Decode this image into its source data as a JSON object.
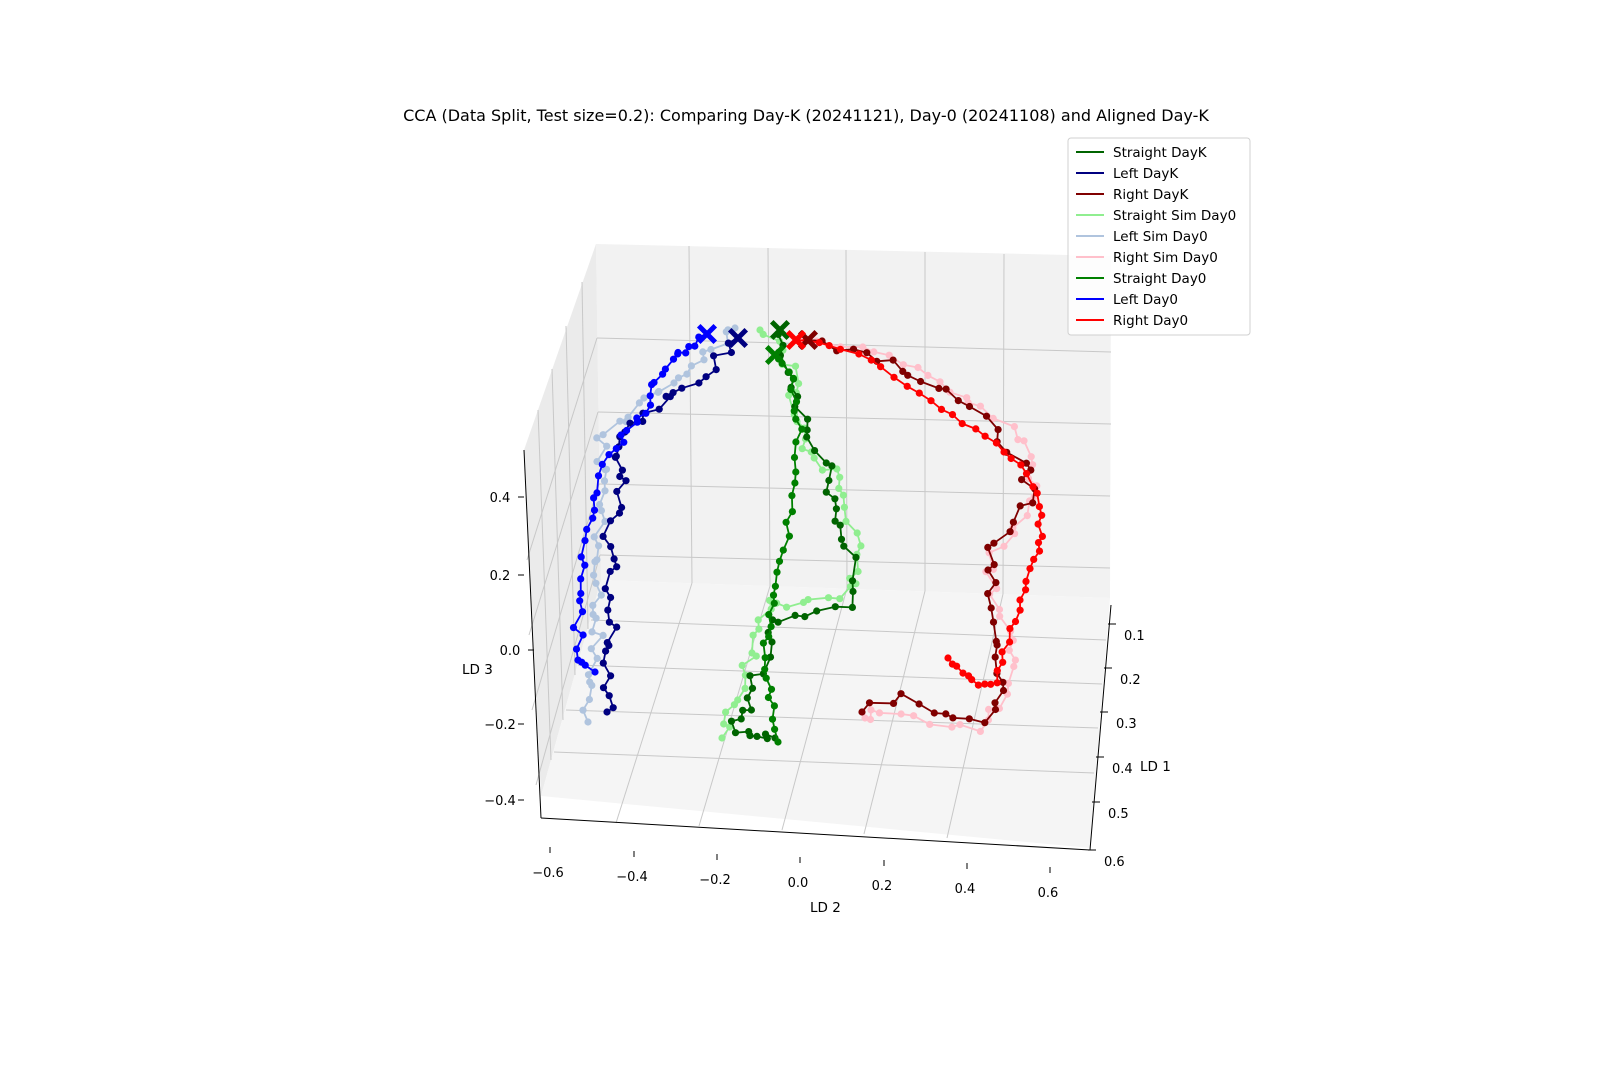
{
  "chart_data": {
    "type": "line3d",
    "title": "CCA (Data Split, Test size=0.2): Comparing Day-K (20241121), Day-0 (20241108) and Aligned Day-K",
    "axes": {
      "x": {
        "label": "LD 1",
        "ticks": [
          "0.1",
          "0.2",
          "0.3",
          "0.4",
          "0.5",
          "0.6"
        ],
        "lim": [
          0.05,
          0.65
        ]
      },
      "y": {
        "label": "LD 2",
        "ticks": [
          "−0.6",
          "−0.4",
          "−0.2",
          "0.0",
          "0.2",
          "0.4",
          "0.6"
        ],
        "lim": [
          -0.65,
          0.65
        ]
      },
      "z": {
        "label": "LD 3",
        "ticks": [
          "−0.4",
          "−0.2",
          "0.0",
          "0.2",
          "0.4"
        ],
        "lim": [
          -0.5,
          0.5
        ]
      }
    },
    "grid": true,
    "legend_position": "top-right",
    "series": [
      {
        "name": "Straight DayK",
        "color": "#006400"
      },
      {
        "name": "Left DayK",
        "color": "#000080"
      },
      {
        "name": "Right DayK",
        "color": "#800000"
      },
      {
        "name": "Straight Sim Day0",
        "color": "#90ee90"
      },
      {
        "name": "Left Sim Day0",
        "color": "#b0c4de"
      },
      {
        "name": "Right Sim Day0",
        "color": "#ffc0cb"
      },
      {
        "name": "Straight Day0",
        "color": "#008000"
      },
      {
        "name": "Left Day0",
        "color": "#0000ff"
      },
      {
        "name": "Right Day0",
        "color": "#ff0000"
      }
    ],
    "trajectories": [
      {
        "series": "Left Sim Day0",
        "color": "#b0c4de",
        "seed": 11,
        "amp": 7,
        "keys": [
          [
            735,
            328
          ],
          [
            725,
            340
          ],
          [
            700,
            362
          ],
          [
            680,
            378
          ],
          [
            655,
            396
          ],
          [
            630,
            413
          ],
          [
            605,
            432
          ],
          [
            600,
            458
          ],
          [
            605,
            480
          ],
          [
            602,
            515
          ],
          [
            600,
            545
          ],
          [
            600,
            575
          ],
          [
            597,
            605
          ],
          [
            598,
            630
          ],
          [
            593,
            660
          ],
          [
            587,
            690
          ],
          [
            588,
            722
          ]
        ]
      },
      {
        "series": "Left DayK",
        "color": "#000080",
        "seed": 22,
        "amp": 7,
        "keys": [
          [
            738,
            338
          ],
          [
            720,
            360
          ],
          [
            695,
            380
          ],
          [
            672,
            395
          ],
          [
            648,
            410
          ],
          [
            628,
            430
          ],
          [
            613,
            452
          ],
          [
            622,
            475
          ],
          [
            617,
            505
          ],
          [
            610,
            535
          ],
          [
            613,
            565
          ],
          [
            609,
            595
          ],
          [
            615,
            630
          ],
          [
            610,
            655
          ],
          [
            608,
            690
          ],
          [
            607,
            712
          ]
        ]
      },
      {
        "series": "Left Day0",
        "color": "#0000ff",
        "seed": 33,
        "amp": 5,
        "keys": [
          [
            707,
            334
          ],
          [
            690,
            348
          ],
          [
            675,
            355
          ],
          [
            660,
            372
          ],
          [
            650,
            395
          ],
          [
            640,
            418
          ],
          [
            625,
            438
          ],
          [
            610,
            455
          ],
          [
            600,
            490
          ],
          [
            592,
            520
          ],
          [
            585,
            555
          ],
          [
            584,
            590
          ],
          [
            578,
            625
          ],
          [
            580,
            660
          ],
          [
            595,
            672
          ]
        ]
      },
      {
        "series": "Straight Sim Day0",
        "color": "#90ee90",
        "seed": 44,
        "amp": 7,
        "keys": [
          [
            760,
            330
          ],
          [
            780,
            350
          ],
          [
            795,
            380
          ],
          [
            795,
            410
          ],
          [
            800,
            440
          ],
          [
            820,
            460
          ],
          [
            840,
            480
          ],
          [
            845,
            510
          ],
          [
            860,
            550
          ],
          [
            855,
            575
          ],
          [
            840,
            595
          ],
          [
            800,
            605
          ],
          [
            770,
            600
          ],
          [
            760,
            625
          ],
          [
            750,
            660
          ],
          [
            740,
            690
          ],
          [
            730,
            710
          ],
          [
            722,
            738
          ]
        ]
      },
      {
        "series": "Straight DayK",
        "color": "#006400",
        "seed": 55,
        "amp": 7,
        "keys": [
          [
            780,
            330
          ],
          [
            785,
            350
          ],
          [
            790,
            380
          ],
          [
            800,
            410
          ],
          [
            810,
            440
          ],
          [
            825,
            470
          ],
          [
            830,
            500
          ],
          [
            840,
            530
          ],
          [
            850,
            560
          ],
          [
            850,
            608
          ],
          [
            800,
            612
          ],
          [
            775,
            620
          ],
          [
            765,
            660
          ],
          [
            752,
            690
          ],
          [
            745,
            715
          ],
          [
            735,
            730
          ],
          [
            760,
            740
          ],
          [
            775,
            738
          ]
        ]
      },
      {
        "series": "Straight Day0",
        "color": "#008000",
        "seed": 66,
        "amp": 3,
        "keys": [
          [
            775,
            355
          ],
          [
            790,
            370
          ],
          [
            795,
            400
          ],
          [
            800,
            430
          ],
          [
            795,
            470
          ],
          [
            790,
            510
          ],
          [
            785,
            550
          ],
          [
            775,
            585
          ],
          [
            770,
            615
          ],
          [
            765,
            645
          ],
          [
            768,
            680
          ],
          [
            772,
            705
          ],
          [
            778,
            742
          ]
        ]
      },
      {
        "series": "Right Sim Day0",
        "color": "#ffc0cb",
        "seed": 77,
        "amp": 7,
        "keys": [
          [
            800,
            340
          ],
          [
            860,
            350
          ],
          [
            900,
            365
          ],
          [
            940,
            382
          ],
          [
            975,
            400
          ],
          [
            1010,
            425
          ],
          [
            1030,
            455
          ],
          [
            1035,
            485
          ],
          [
            1025,
            515
          ],
          [
            1000,
            545
          ],
          [
            985,
            575
          ],
          [
            1000,
            605
          ],
          [
            1010,
            640
          ],
          [
            1010,
            670
          ],
          [
            1005,
            705
          ],
          [
            975,
            730
          ],
          [
            930,
            720
          ],
          [
            880,
            712
          ],
          [
            865,
            718
          ]
        ]
      },
      {
        "series": "Right DayK",
        "color": "#800000",
        "seed": 88,
        "amp": 7,
        "keys": [
          [
            808,
            340
          ],
          [
            860,
            350
          ],
          [
            890,
            365
          ],
          [
            925,
            380
          ],
          [
            960,
            400
          ],
          [
            995,
            430
          ],
          [
            1020,
            460
          ],
          [
            1032,
            490
          ],
          [
            1020,
            520
          ],
          [
            990,
            550
          ],
          [
            990,
            585
          ],
          [
            1000,
            625
          ],
          [
            1000,
            660
          ],
          [
            998,
            690
          ],
          [
            985,
            720
          ],
          [
            945,
            718
          ],
          [
            900,
            695
          ],
          [
            862,
            712
          ]
        ]
      },
      {
        "series": "Right Day0",
        "color": "#ff0000",
        "seed": 99,
        "amp": 3,
        "keys": [
          [
            796,
            340
          ],
          [
            830,
            345
          ],
          [
            870,
            360
          ],
          [
            905,
            385
          ],
          [
            940,
            410
          ],
          [
            975,
            430
          ],
          [
            1005,
            450
          ],
          [
            1025,
            475
          ],
          [
            1040,
            505
          ],
          [
            1040,
            535
          ],
          [
            1035,
            560
          ],
          [
            1025,
            590
          ],
          [
            1015,
            620
          ],
          [
            1005,
            650
          ],
          [
            995,
            682
          ],
          [
            980,
            685
          ],
          [
            962,
            672
          ],
          [
            948,
            658
          ]
        ]
      }
    ],
    "start_markers": [
      {
        "series": "Left DayK",
        "color": "#000080"
      },
      {
        "series": "Left Day0",
        "color": "#0000ff"
      },
      {
        "series": "Straight DayK",
        "color": "#006400"
      },
      {
        "series": "Straight Day0",
        "color": "#008000"
      },
      {
        "series": "Right DayK",
        "color": "#800000"
      },
      {
        "series": "Right Day0",
        "color": "#ff0000"
      }
    ]
  }
}
